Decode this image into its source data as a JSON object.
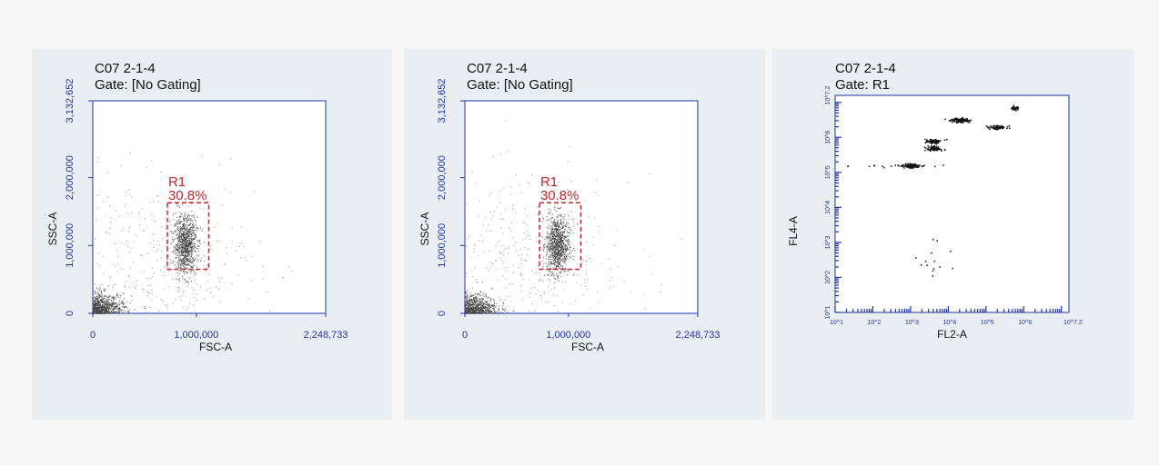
{
  "panels": [
    {
      "id": "p1",
      "sample": "C07 2-1-4",
      "gate": "Gate: [No Gating]",
      "chart_data": {
        "type": "scatter",
        "title": "C07 2-1-4",
        "subtitle": "Gate: [No Gating]",
        "xlabel": "FSC-A",
        "ylabel": "SSC-A",
        "xlim": [
          0,
          2248733
        ],
        "ylim": [
          0,
          3132652
        ],
        "x_ticks": [
          "0",
          "1,000,000",
          "2,248,733"
        ],
        "y_ticks": [
          "0",
          "1,000,000",
          "2,000,000",
          "3,132,652"
        ],
        "gate_region": {
          "name": "R1",
          "percent": "30.8%",
          "x_range": [
            720000,
            1120000
          ],
          "y_range": [
            650000,
            1630000
          ]
        },
        "populations": [
          {
            "center": [
              890000,
              1020000
            ],
            "spread": [
              55000,
              210000
            ],
            "count": 900
          },
          {
            "center": [
              70000,
              70000
            ],
            "spread": [
              120000,
              110000
            ],
            "count": 700
          },
          {
            "center": [
              600000,
              700000
            ],
            "spread": [
              500000,
              650000
            ],
            "count": 450
          }
        ]
      }
    },
    {
      "id": "p2",
      "sample": "C07 2-1-4",
      "gate": "Gate: [No Gating]",
      "chart_data": {
        "type": "scatter",
        "title": "C07 2-1-4",
        "subtitle": "Gate: [No Gating]",
        "xlabel": "FSC-A",
        "ylabel": "SSC-A",
        "xlim": [
          0,
          2248733
        ],
        "ylim": [
          0,
          3132652
        ],
        "x_ticks": [
          "0",
          "1,000,000",
          "2,248,733"
        ],
        "y_ticks": [
          "0",
          "1,000,000",
          "2,000,000",
          "3,132,652"
        ],
        "gate_region": {
          "name": "R1",
          "percent": "30.8%",
          "x_range": [
            720000,
            1120000
          ],
          "y_range": [
            650000,
            1630000
          ]
        },
        "populations": [
          {
            "center": [
              890000,
              1020000
            ],
            "spread": [
              55000,
              210000
            ],
            "count": 900
          },
          {
            "center": [
              70000,
              70000
            ],
            "spread": [
              120000,
              110000
            ],
            "count": 700
          },
          {
            "center": [
              600000,
              700000
            ],
            "spread": [
              500000,
              650000
            ],
            "count": 450
          }
        ]
      }
    },
    {
      "id": "p3",
      "sample": "C07 2-1-4",
      "gate": "Gate: R1",
      "chart_data": {
        "type": "scatter",
        "title": "C07 2-1-4",
        "subtitle": "Gate: R1",
        "xlabel": "FL2-A",
        "ylabel": "FL4-A",
        "x_scale": "log",
        "y_scale": "log",
        "xlim_log10": [
          1,
          7.2
        ],
        "ylim_log10": [
          1,
          7.2
        ],
        "x_ticks": [
          "10^1",
          "10^2",
          "10^3",
          "10^4",
          "10^5",
          "10^6",
          "10^7.2"
        ],
        "y_ticks": [
          "10^1",
          "10^2",
          "10^3",
          "10^4",
          "10^5",
          "10^6",
          "10^7.2"
        ],
        "clusters_log10": [
          {
            "x": 3.0,
            "y": 5.2,
            "sx": 0.12,
            "sy": 0.03,
            "count": 120
          },
          {
            "x": 3.6,
            "y": 5.7,
            "sx": 0.1,
            "sy": 0.03,
            "count": 90
          },
          {
            "x": 3.6,
            "y": 5.9,
            "sx": 0.09,
            "sy": 0.03,
            "count": 80
          },
          {
            "x": 4.3,
            "y": 6.5,
            "sx": 0.12,
            "sy": 0.03,
            "count": 100
          },
          {
            "x": 5.3,
            "y": 6.3,
            "sx": 0.1,
            "sy": 0.03,
            "count": 80
          },
          {
            "x": 5.75,
            "y": 6.85,
            "sx": 0.05,
            "sy": 0.03,
            "count": 40
          },
          {
            "x": 2.6,
            "y": 5.2,
            "sx": 0.7,
            "sy": 0.02,
            "count": 25
          },
          {
            "x": 3.6,
            "y": 2.4,
            "sx": 0.3,
            "sy": 0.25,
            "count": 14
          }
        ]
      }
    }
  ]
}
